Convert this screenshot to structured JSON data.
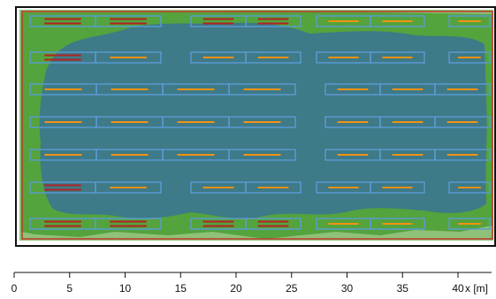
{
  "scale": {
    "unit_label": "x [m]",
    "ticks": [
      "0",
      "5",
      "10",
      "15",
      "20",
      "25",
      "30",
      "35",
      "40"
    ],
    "range_m": [
      0,
      43
    ]
  },
  "colors": {
    "background_light": "#8fc178",
    "field_green": "#54a33d",
    "water_blue": "#3e7a87",
    "boundary_red": "#c0392b",
    "frame_black": "#111111",
    "grid_blue": "#5b9bd5",
    "marker_orange": "#f29111",
    "marker_red": "#b22222"
  },
  "grid": {
    "rows": [
      {
        "segments": 4,
        "band": "left",
        "markers": [
          "red",
          "red",
          "red",
          "red"
        ]
      },
      {
        "segments": 3,
        "band": "right",
        "markers": [
          "orange",
          "orange",
          "orange"
        ]
      },
      {
        "segments": 2,
        "band": "left",
        "markers": [
          "red",
          "orange"
        ]
      },
      {
        "segments": 2,
        "band": "middle",
        "markers": [
          "orange",
          "orange"
        ]
      },
      {
        "segments": 3,
        "band": "right",
        "markers": [
          "orange",
          "orange",
          "orange"
        ]
      },
      {
        "segments": 4,
        "band": "left",
        "markers": [
          "orange",
          "orange",
          "orange",
          "orange"
        ]
      },
      {
        "segments": 3,
        "band": "right",
        "markers": [
          "orange",
          "orange",
          "orange"
        ]
      },
      {
        "segments": 4,
        "band": "left",
        "markers": [
          "orange",
          "orange",
          "orange",
          "orange"
        ]
      },
      {
        "segments": 3,
        "band": "right",
        "markers": [
          "orange",
          "orange",
          "orange"
        ]
      },
      {
        "segments": 4,
        "band": "left",
        "markers": [
          "orange",
          "orange",
          "orange",
          "orange"
        ]
      },
      {
        "segments": 3,
        "band": "right",
        "markers": [
          "orange",
          "orange",
          "orange"
        ]
      },
      {
        "segments": 2,
        "band": "left",
        "markers": [
          "red",
          "orange"
        ]
      },
      {
        "segments": 2,
        "band": "middle",
        "markers": [
          "orange",
          "orange"
        ]
      },
      {
        "segments": 3,
        "band": "right",
        "markers": [
          "orange",
          "orange",
          "orange"
        ]
      },
      {
        "segments": 4,
        "band": "left",
        "markers": [
          "red",
          "red",
          "red",
          "red"
        ]
      },
      {
        "segments": 3,
        "band": "right",
        "markers": [
          "orange",
          "orange",
          "orange"
        ]
      }
    ]
  }
}
